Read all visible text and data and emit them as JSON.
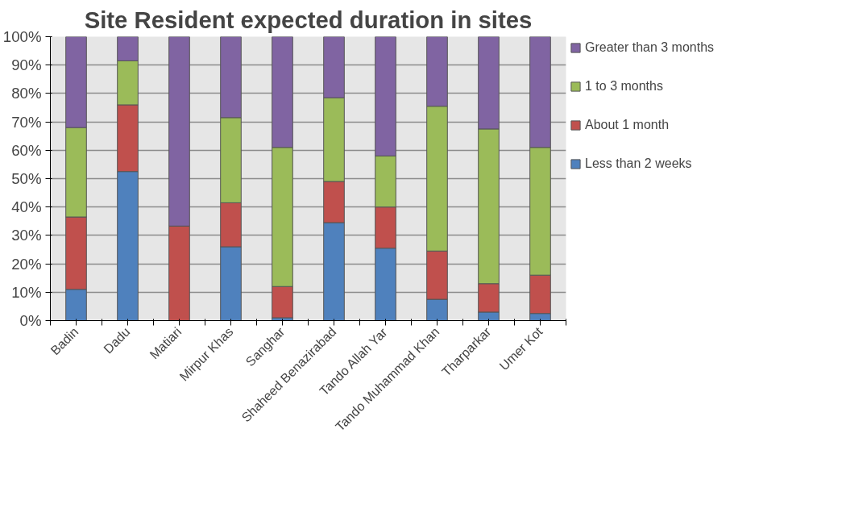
{
  "chart_data": {
    "type": "bar",
    "title": "Site Resident expected duration in sites",
    "stacked": true,
    "categories": [
      "Badin",
      "Dadu",
      "Matiari",
      "Mirpur Khas",
      "Sanghar",
      "Shaheed Benazirabad",
      "Tando Allah Yar",
      "Tando Muhammad Khan",
      "Tharparkar",
      "Umer Kot"
    ],
    "series": [
      {
        "name": "Less than 2 weeks",
        "color": "#4f81bd",
        "values": [
          11,
          52.5,
          0,
          26,
          1,
          34.5,
          25.5,
          7.5,
          3,
          2.5
        ]
      },
      {
        "name": "About 1 month",
        "color": "#c0504d",
        "values": [
          25.5,
          23.5,
          33.3,
          15.5,
          11,
          14.5,
          14.5,
          17,
          10,
          13.5
        ]
      },
      {
        "name": "1 to 3 months",
        "color": "#9bbb59",
        "values": [
          31.5,
          15.5,
          0,
          30,
          49,
          29.5,
          18,
          51,
          54.5,
          45
        ]
      },
      {
        "name": "Greater than 3 months",
        "color": "#8064a2",
        "values": [
          32,
          8.5,
          66.7,
          28.5,
          39,
          21.5,
          42,
          24.5,
          32.5,
          39
        ]
      }
    ],
    "ylim": [
      0,
      100
    ],
    "yticks": [
      {
        "value": 0,
        "label": "0%"
      },
      {
        "value": 10,
        "label": "10%"
      },
      {
        "value": 20,
        "label": "20%"
      },
      {
        "value": 30,
        "label": "30%"
      },
      {
        "value": 40,
        "label": "40%"
      },
      {
        "value": 50,
        "label": "50%"
      },
      {
        "value": 60,
        "label": "60%"
      },
      {
        "value": 70,
        "label": "70%"
      },
      {
        "value": 80,
        "label": "80%"
      },
      {
        "value": 90,
        "label": "90%"
      },
      {
        "value": 100,
        "label": "100%"
      }
    ],
    "grid": "y",
    "legend": "right"
  }
}
